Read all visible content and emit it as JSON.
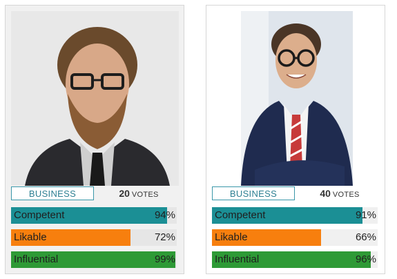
{
  "colors": {
    "competent": "#1b8f95",
    "likable": "#f77f0e",
    "influential": "#2e9a36"
  },
  "cards": [
    {
      "tag": "BUSINESS",
      "votes_num": "20",
      "votes_word": "votes",
      "bars": [
        {
          "label": "Competent",
          "pct": "94%",
          "value": 0.94
        },
        {
          "label": "Likable",
          "pct": "72%",
          "value": 0.72
        },
        {
          "label": "Influential",
          "pct": "99%",
          "value": 0.99
        }
      ]
    },
    {
      "tag": "BUSINESS",
      "votes_num": "40",
      "votes_word": "votes",
      "bars": [
        {
          "label": "Competent",
          "pct": "91%",
          "value": 0.91
        },
        {
          "label": "Likable",
          "pct": "66%",
          "value": 0.66
        },
        {
          "label": "Influential",
          "pct": "96%",
          "value": 0.96
        }
      ]
    }
  ]
}
